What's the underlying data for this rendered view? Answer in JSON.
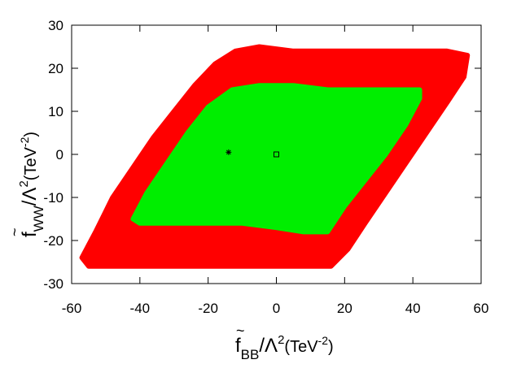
{
  "chart_data": {
    "type": "area",
    "xlabel": {
      "tilde": "~",
      "base": "f",
      "sub": "BB",
      "mid": "/Λ",
      "sup": "2",
      "units": "(TeV",
      "units_sup": "-2",
      "units_close": ")"
    },
    "ylabel": {
      "tilde": "~",
      "base": "f",
      "sub": "WW",
      "mid": "/Λ",
      "sup": "2",
      "units": "(TeV",
      "units_sup": "-2",
      "units_close": ")"
    },
    "xlim": [
      -60,
      60
    ],
    "ylim": [
      -30,
      30
    ],
    "xticks": [
      -60,
      -40,
      -20,
      0,
      20,
      40,
      60
    ],
    "yticks": [
      -30,
      -20,
      -10,
      0,
      10,
      20,
      30
    ],
    "grid": false,
    "series": [
      {
        "color": "#ff0000",
        "polygon": [
          [
            -57,
            -24
          ],
          [
            -53,
            -18
          ],
          [
            -48,
            -10
          ],
          [
            -42,
            -3
          ],
          [
            -36,
            4
          ],
          [
            -30,
            10
          ],
          [
            -24,
            16
          ],
          [
            -18,
            21
          ],
          [
            -12,
            24
          ],
          [
            -5,
            25
          ],
          [
            5,
            24
          ],
          [
            18,
            24
          ],
          [
            30,
            24
          ],
          [
            42,
            24
          ],
          [
            50,
            24
          ],
          [
            56,
            23
          ],
          [
            55,
            18
          ],
          [
            50,
            12
          ],
          [
            44,
            5
          ],
          [
            38,
            -2
          ],
          [
            32,
            -9
          ],
          [
            26,
            -16
          ],
          [
            21,
            -22
          ],
          [
            16,
            -26
          ],
          [
            8,
            -26
          ],
          [
            -2,
            -26
          ],
          [
            -12,
            -26
          ],
          [
            -25,
            -26
          ],
          [
            -40,
            -26
          ],
          [
            -55,
            -26
          ]
        ]
      },
      {
        "color": "#00ee00",
        "polygon": [
          [
            -42,
            -15
          ],
          [
            -38,
            -9
          ],
          [
            -32,
            -2
          ],
          [
            -26,
            5
          ],
          [
            -20,
            11
          ],
          [
            -13,
            15
          ],
          [
            -5,
            16
          ],
          [
            5,
            16
          ],
          [
            15,
            15
          ],
          [
            25,
            15
          ],
          [
            35,
            15
          ],
          [
            42,
            15
          ],
          [
            42,
            13
          ],
          [
            38,
            7
          ],
          [
            32,
            0
          ],
          [
            26,
            -6
          ],
          [
            20,
            -12
          ],
          [
            15,
            -18
          ],
          [
            8,
            -18
          ],
          [
            0,
            -17
          ],
          [
            -10,
            -16
          ],
          [
            -20,
            -16
          ],
          [
            -30,
            -16
          ],
          [
            -40,
            -16
          ]
        ]
      }
    ],
    "markers": [
      {
        "symbol": "star",
        "x": -14,
        "y": 0.5,
        "color": "#000000"
      },
      {
        "symbol": "square",
        "x": 0,
        "y": 0,
        "color": "#000000"
      }
    ]
  }
}
